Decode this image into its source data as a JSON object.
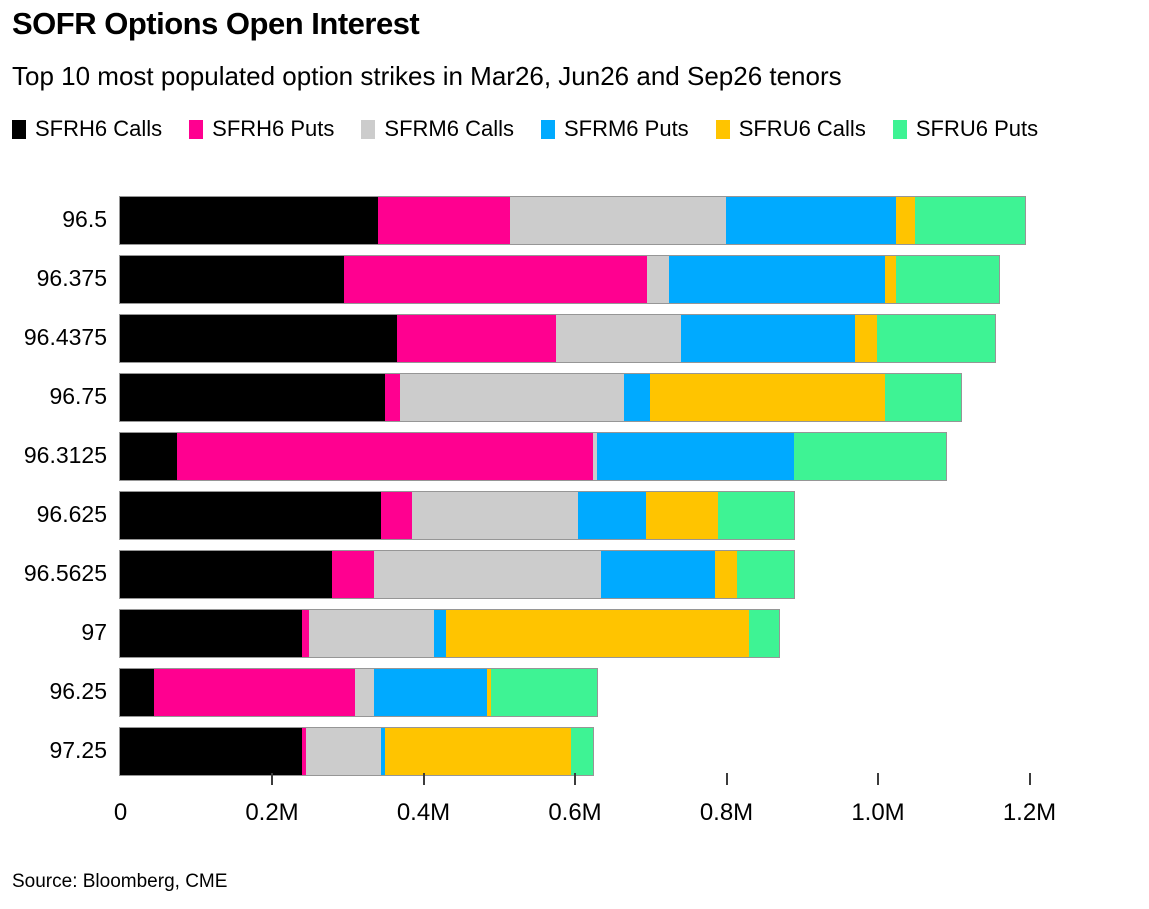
{
  "header": {
    "title": "SOFR Options Open Interest",
    "subtitle": "Top 10 most populated option strikes in Mar26, Jun26 and Sep26 tenors"
  },
  "legend": {
    "items": [
      {
        "label": "SFRH6 Calls",
        "color": "#000000"
      },
      {
        "label": "SFRH6 Puts",
        "color": "#ff0090"
      },
      {
        "label": "SFRM6 Calls",
        "color": "#cccccc"
      },
      {
        "label": "SFRM6 Puts",
        "color": "#00aaff"
      },
      {
        "label": "SFRU6 Calls",
        "color": "#ffc400"
      },
      {
        "label": "SFRU6 Puts",
        "color": "#3ef394"
      }
    ]
  },
  "chart_data": {
    "type": "bar",
    "orientation": "horizontal",
    "stacked": true,
    "unit": "millions of contracts",
    "title": "SOFR Options Open Interest",
    "subtitle": "Top 10 most populated option strikes in Mar26, Jun26 and Sep26 tenors",
    "xlabel": "",
    "ylabel": "",
    "categories": [
      "96.5",
      "96.375",
      "96.4375",
      "96.75",
      "96.3125",
      "96.625",
      "96.5625",
      "97",
      "96.25",
      "97.25"
    ],
    "series": [
      {
        "name": "SFRH6 Calls",
        "color": "#000000",
        "values": [
          0.34,
          0.295,
          0.365,
          0.35,
          0.075,
          0.345,
          0.28,
          0.24,
          0.045,
          0.24
        ]
      },
      {
        "name": "SFRH6 Puts",
        "color": "#ff0090",
        "values": [
          0.175,
          0.4,
          0.21,
          0.02,
          0.55,
          0.04,
          0.055,
          0.01,
          0.265,
          0.005
        ]
      },
      {
        "name": "SFRM6 Calls",
        "color": "#cccccc",
        "values": [
          0.285,
          0.03,
          0.165,
          0.295,
          0.005,
          0.22,
          0.3,
          0.165,
          0.025,
          0.1
        ]
      },
      {
        "name": "SFRM6 Puts",
        "color": "#00aaff",
        "values": [
          0.225,
          0.285,
          0.23,
          0.035,
          0.26,
          0.09,
          0.15,
          0.015,
          0.15,
          0.005
        ]
      },
      {
        "name": "SFRU6 Calls",
        "color": "#ffc400",
        "values": [
          0.025,
          0.015,
          0.03,
          0.31,
          0.0,
          0.095,
          0.03,
          0.4,
          0.005,
          0.245
        ]
      },
      {
        "name": "SFRU6 Puts",
        "color": "#3ef394",
        "values": [
          0.145,
          0.135,
          0.155,
          0.1,
          0.2,
          0.1,
          0.075,
          0.04,
          0.14,
          0.03
        ]
      }
    ],
    "totals": [
      1.195,
      1.16,
      1.155,
      1.11,
      1.09,
      0.89,
      0.89,
      0.87,
      0.63,
      0.625
    ],
    "xlim": [
      0,
      1.2
    ],
    "xticks": {
      "values": [
        0,
        0.2,
        0.4,
        0.6,
        0.8,
        1.0,
        1.2
      ],
      "labels": [
        "0",
        "0.2M",
        "0.4M",
        "0.6M",
        "0.8M",
        "1.0M",
        "1.2M"
      ]
    },
    "legend_position": "top",
    "grid": false
  },
  "footer": {
    "source": "Source: Bloomberg, CME"
  }
}
